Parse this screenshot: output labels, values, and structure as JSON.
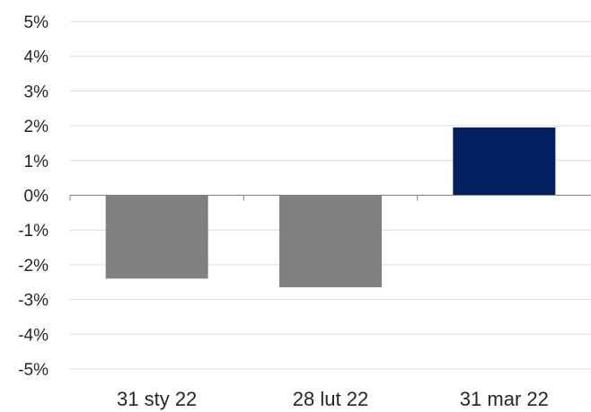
{
  "chart_data": {
    "type": "bar",
    "categories": [
      "31 sty 22",
      "28 lut 22",
      "31 mar 22"
    ],
    "series": [
      {
        "values": [
          -2.4,
          -2.65,
          1.95
        ]
      }
    ],
    "bar_colors": [
      "#808080",
      "#808080",
      "#002060"
    ],
    "ylim": [
      -5,
      5
    ],
    "yticks": [
      5,
      4,
      3,
      2,
      1,
      0,
      -1,
      -2,
      -3,
      -4,
      -5
    ],
    "ytick_labels": [
      "5%",
      "4%",
      "3%",
      "2%",
      "1%",
      "0%",
      "-1%",
      "-2%",
      "-3%",
      "-4%",
      "-5%"
    ],
    "grid": true,
    "grid_color": "#d9d9d9",
    "axis_color": "#7f7f7f",
    "legend": "none"
  }
}
